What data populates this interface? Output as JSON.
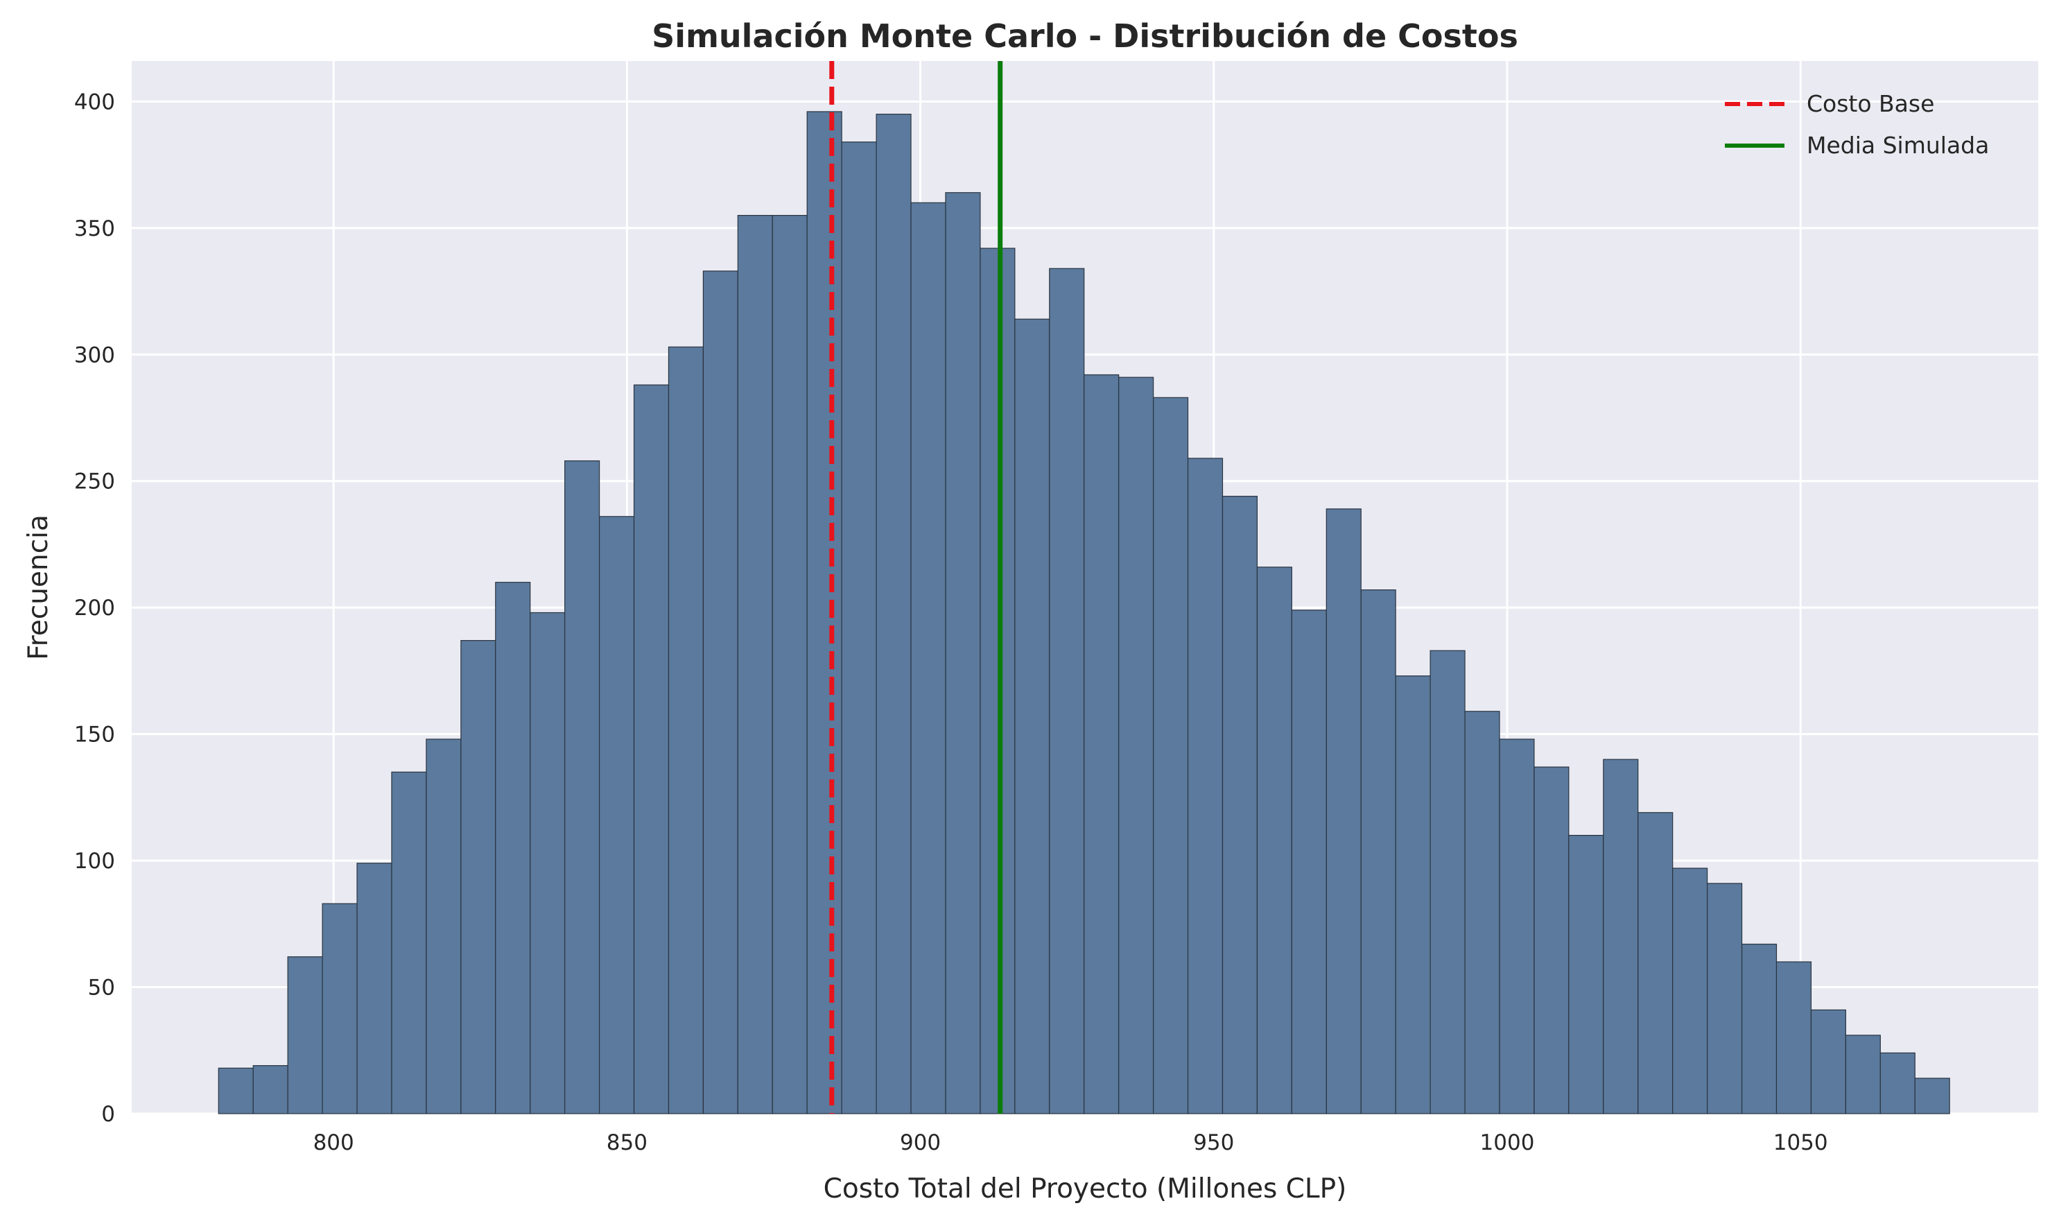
{
  "chart_data": {
    "type": "bar",
    "subtype": "histogram",
    "title": "Simulación Monte Carlo - Distribución de Costos",
    "xlabel": "Costo Total del Proyecto (Millones CLP)",
    "ylabel": "Frecuencia",
    "xlim": [
      765.6,
      1090.5
    ],
    "ylim": [
      0,
      416
    ],
    "xticks": [
      800,
      850,
      900,
      950,
      1000,
      1050
    ],
    "yticks": [
      0,
      50,
      100,
      150,
      200,
      250,
      300,
      350,
      400
    ],
    "grid": true,
    "legend_position": "top-right",
    "bin_start": 780.4,
    "bin_width": 5.9,
    "bin_counts": [
      18,
      19,
      62,
      83,
      99,
      135,
      148,
      187,
      210,
      198,
      258,
      236,
      288,
      303,
      333,
      355,
      355,
      396,
      384,
      395,
      360,
      364,
      342,
      314,
      334,
      292,
      291,
      283,
      259,
      244,
      216,
      199,
      239,
      207,
      173,
      183,
      159,
      148,
      137,
      110,
      140,
      119,
      97,
      91,
      67,
      60,
      41,
      31,
      24,
      14
    ],
    "reference_lines": [
      {
        "name": "Costo Base",
        "x": 884.9,
        "style": "dashed",
        "color": "#e8141c"
      },
      {
        "name": "Media Simulada",
        "x": 913.6,
        "style": "solid",
        "color": "#0a7d0a"
      }
    ],
    "colors": {
      "bar_fill": "#5b7a9d",
      "bar_edge": "#2a3440",
      "plot_background": "#eaeaf2",
      "grid": "#ffffff"
    }
  }
}
